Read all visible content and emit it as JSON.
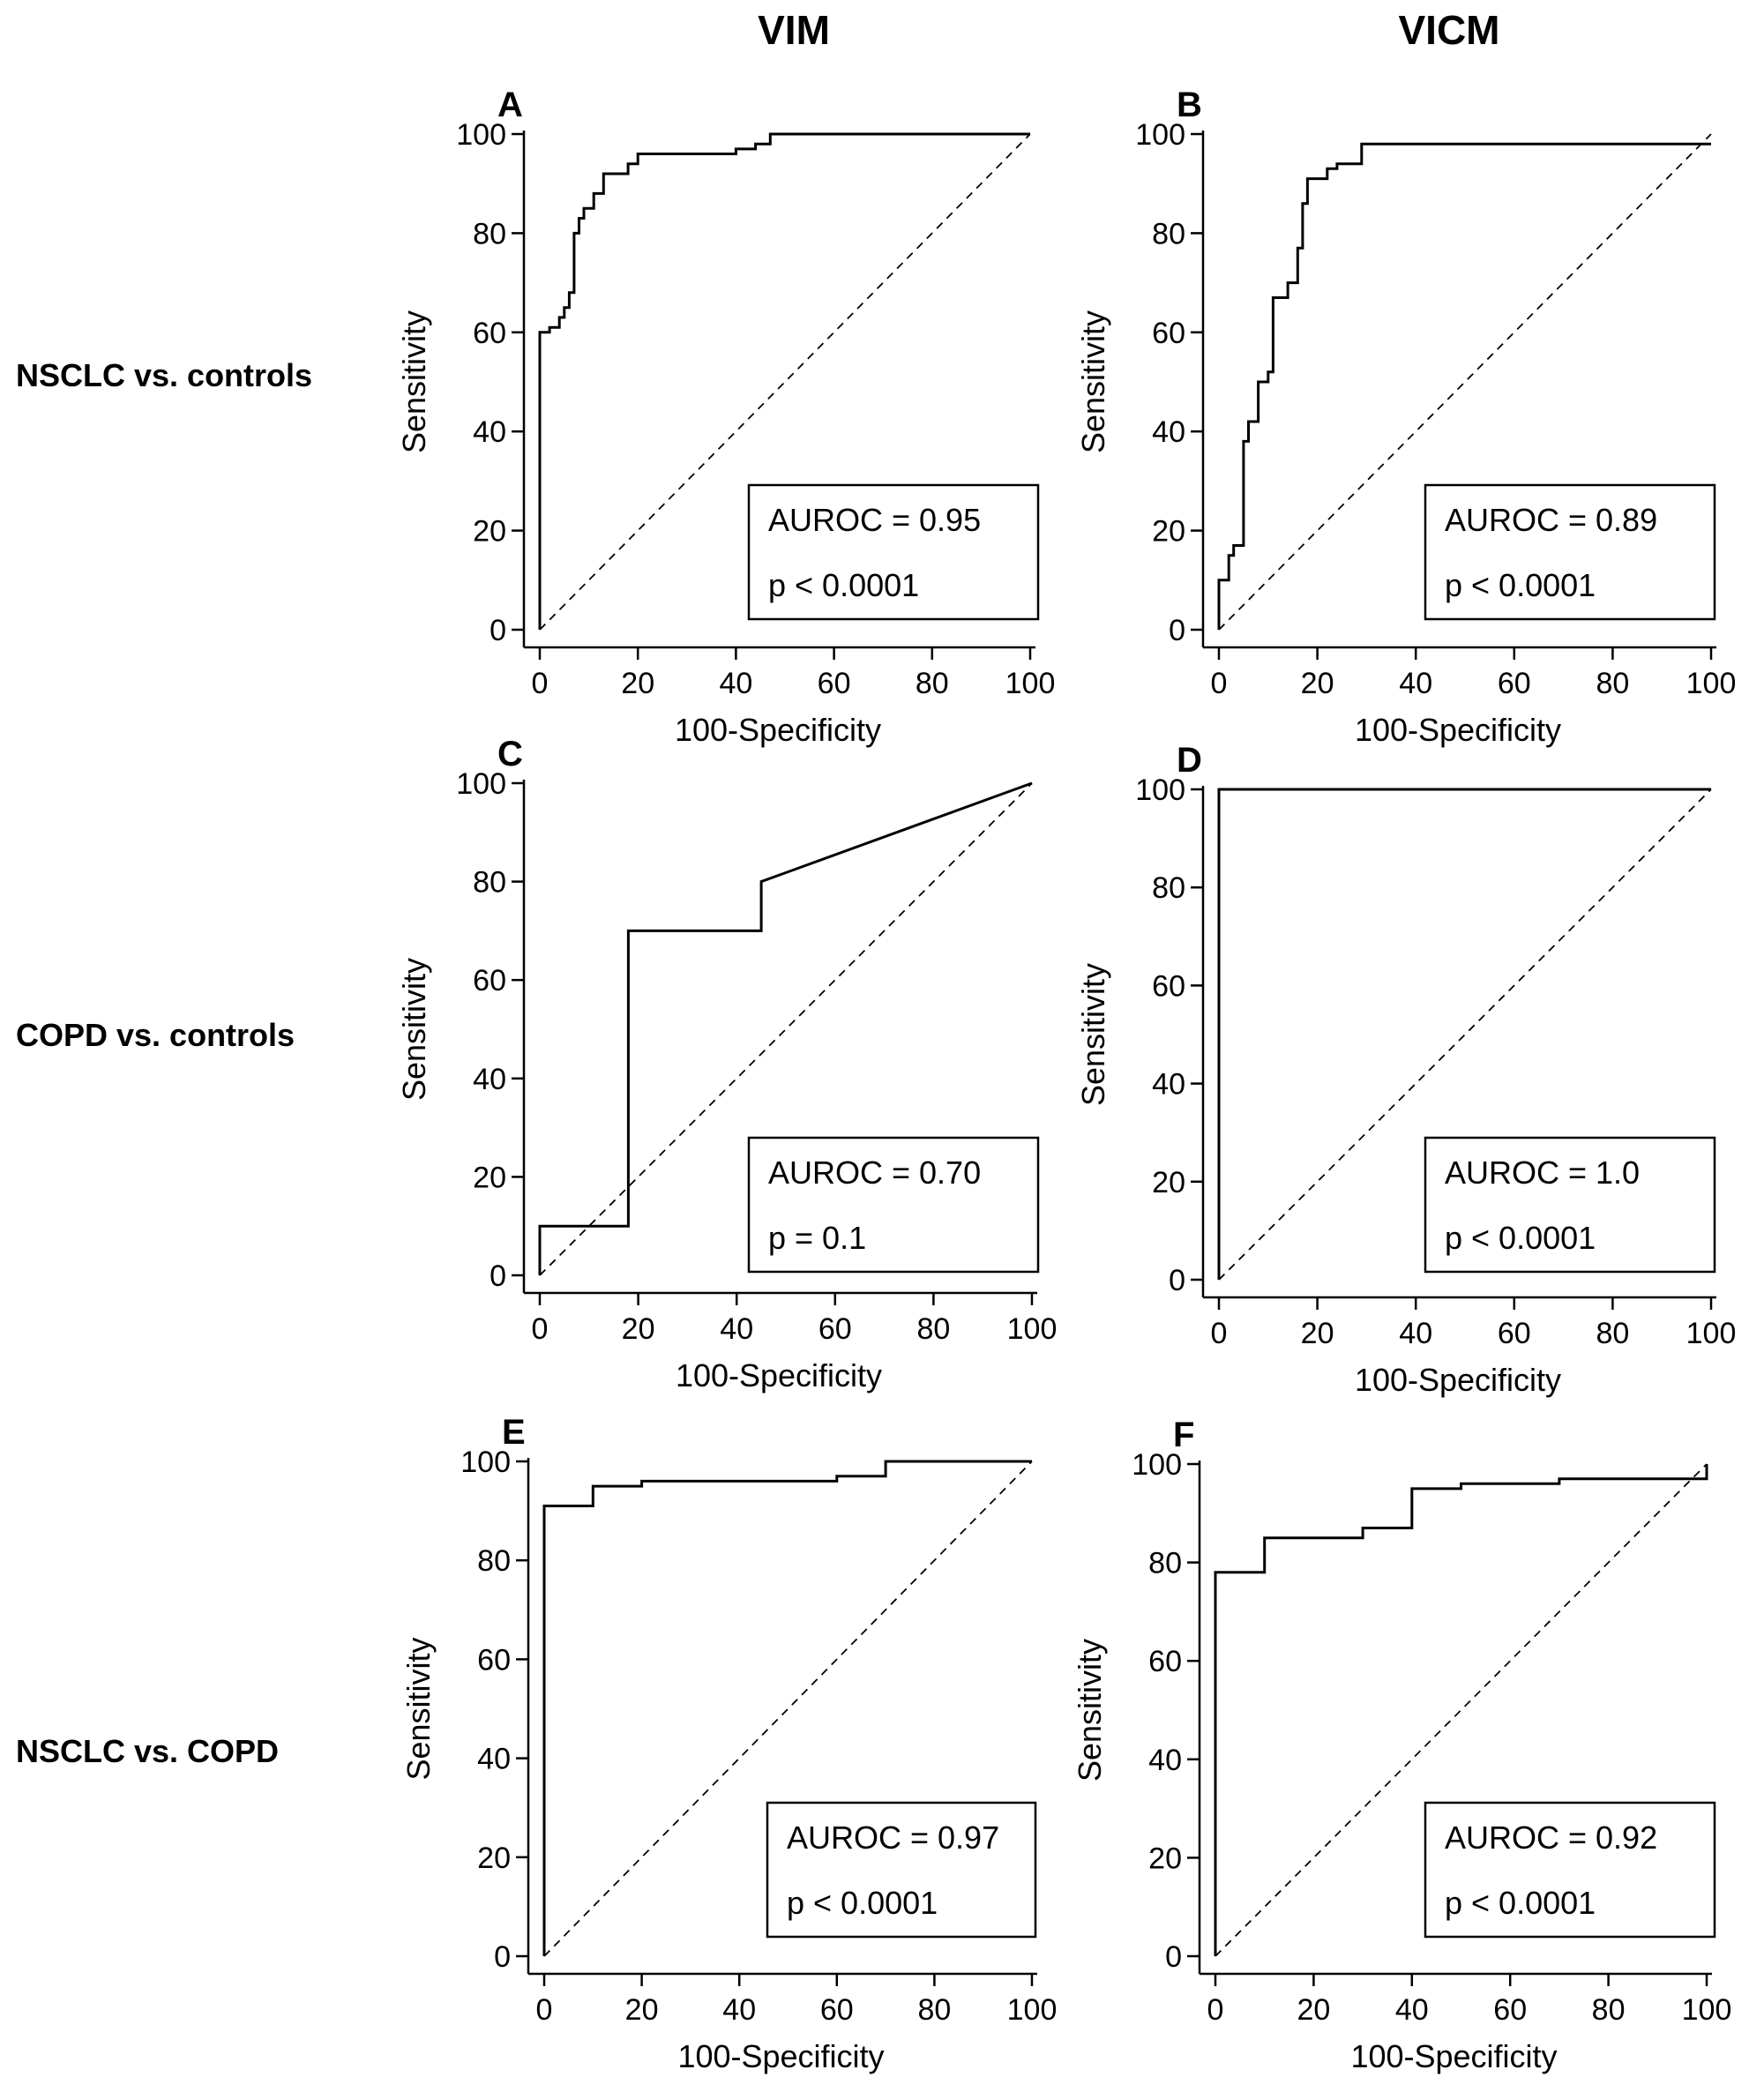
{
  "columns": [
    "VIM",
    "VICM"
  ],
  "rows": [
    "NSCLC vs. controls",
    "COPD vs. controls",
    "NSCLC vs. COPD"
  ],
  "chart_data": [
    {
      "panel": "A",
      "type": "line",
      "xlabel": "100-Specificity",
      "ylabel": "Sensitivity",
      "xlim": [
        0,
        100
      ],
      "ylim": [
        0,
        100
      ],
      "xticks": [
        0,
        20,
        40,
        60,
        80,
        100
      ],
      "yticks": [
        0,
        20,
        40,
        60,
        80,
        100
      ],
      "auroc": "AUROC = 0.95",
      "pvalue": "p < 0.0001",
      "reference_line": [
        [
          0,
          0
        ],
        [
          100,
          100
        ]
      ],
      "curve": [
        [
          0,
          0
        ],
        [
          0,
          60
        ],
        [
          2,
          60
        ],
        [
          2,
          61
        ],
        [
          4,
          61
        ],
        [
          4,
          63
        ],
        [
          5,
          63
        ],
        [
          5,
          65
        ],
        [
          6,
          65
        ],
        [
          6,
          68
        ],
        [
          7,
          68
        ],
        [
          7,
          80
        ],
        [
          8,
          80
        ],
        [
          8,
          83
        ],
        [
          9,
          83
        ],
        [
          9,
          85
        ],
        [
          11,
          85
        ],
        [
          11,
          88
        ],
        [
          13,
          88
        ],
        [
          13,
          92
        ],
        [
          18,
          92
        ],
        [
          18,
          94
        ],
        [
          20,
          94
        ],
        [
          20,
          96
        ],
        [
          40,
          96
        ],
        [
          40,
          97
        ],
        [
          44,
          97
        ],
        [
          44,
          98
        ],
        [
          47,
          98
        ],
        [
          47,
          100
        ],
        [
          100,
          100
        ]
      ]
    },
    {
      "panel": "B",
      "type": "line",
      "xlabel": "100-Specificity",
      "ylabel": "Sensitivity",
      "xlim": [
        0,
        100
      ],
      "ylim": [
        0,
        100
      ],
      "xticks": [
        0,
        20,
        40,
        60,
        80,
        100
      ],
      "yticks": [
        0,
        20,
        40,
        60,
        80,
        100
      ],
      "auroc": "AUROC = 0.89",
      "pvalue": "p < 0.0001",
      "reference_line": [
        [
          0,
          0
        ],
        [
          100,
          100
        ]
      ],
      "curve": [
        [
          0,
          0
        ],
        [
          0,
          10
        ],
        [
          2,
          10
        ],
        [
          2,
          15
        ],
        [
          3,
          15
        ],
        [
          3,
          17
        ],
        [
          5,
          17
        ],
        [
          5,
          38
        ],
        [
          6,
          38
        ],
        [
          6,
          42
        ],
        [
          8,
          42
        ],
        [
          8,
          50
        ],
        [
          10,
          50
        ],
        [
          10,
          52
        ],
        [
          11,
          52
        ],
        [
          11,
          67
        ],
        [
          14,
          67
        ],
        [
          14,
          70
        ],
        [
          16,
          70
        ],
        [
          16,
          77
        ],
        [
          17,
          77
        ],
        [
          17,
          86
        ],
        [
          18,
          86
        ],
        [
          18,
          91
        ],
        [
          22,
          91
        ],
        [
          22,
          93
        ],
        [
          24,
          93
        ],
        [
          24,
          94
        ],
        [
          29,
          94
        ],
        [
          29,
          98
        ],
        [
          100,
          98
        ]
      ]
    },
    {
      "panel": "C",
      "type": "line",
      "xlabel": "100-Specificity",
      "ylabel": "Sensitivity",
      "xlim": [
        0,
        100
      ],
      "ylim": [
        0,
        100
      ],
      "xticks": [
        0,
        20,
        40,
        60,
        80,
        100
      ],
      "yticks": [
        0,
        20,
        40,
        60,
        80,
        100
      ],
      "auroc": "AUROC = 0.70",
      "pvalue": "p = 0.1",
      "reference_line": [
        [
          0,
          0
        ],
        [
          100,
          100
        ]
      ],
      "curve": [
        [
          0,
          0
        ],
        [
          0,
          10
        ],
        [
          18,
          10
        ],
        [
          18,
          70
        ],
        [
          45,
          70
        ],
        [
          45,
          80
        ],
        [
          100,
          100
        ]
      ]
    },
    {
      "panel": "D",
      "type": "line",
      "xlabel": "100-Specificity",
      "ylabel": "Sensitivity",
      "xlim": [
        0,
        100
      ],
      "ylim": [
        0,
        100
      ],
      "xticks": [
        0,
        20,
        40,
        60,
        80,
        100
      ],
      "yticks": [
        0,
        20,
        40,
        60,
        80,
        100
      ],
      "auroc": "AUROC = 1.0",
      "pvalue": "p < 0.0001",
      "reference_line": [
        [
          0,
          0
        ],
        [
          100,
          100
        ]
      ],
      "curve": [
        [
          0,
          0
        ],
        [
          0,
          100
        ],
        [
          100,
          100
        ]
      ]
    },
    {
      "panel": "E",
      "type": "line",
      "xlabel": "100-Specificity",
      "ylabel": "Sensitivity",
      "xlim": [
        0,
        100
      ],
      "ylim": [
        0,
        100
      ],
      "xticks": [
        0,
        20,
        40,
        60,
        80,
        100
      ],
      "yticks": [
        0,
        20,
        40,
        60,
        80,
        100
      ],
      "auroc": "AUROC = 0.97",
      "pvalue": "p < 0.0001",
      "reference_line": [
        [
          0,
          0
        ],
        [
          100,
          100
        ]
      ],
      "curve": [
        [
          0,
          0
        ],
        [
          0,
          91
        ],
        [
          10,
          91
        ],
        [
          10,
          95
        ],
        [
          20,
          95
        ],
        [
          20,
          96
        ],
        [
          60,
          96
        ],
        [
          60,
          97
        ],
        [
          70,
          97
        ],
        [
          70,
          100
        ],
        [
          100,
          100
        ]
      ]
    },
    {
      "panel": "F",
      "type": "line",
      "xlabel": "100-Specificity",
      "ylabel": "Sensitivity",
      "xlim": [
        0,
        100
      ],
      "ylim": [
        0,
        100
      ],
      "xticks": [
        0,
        20,
        40,
        60,
        80,
        100
      ],
      "yticks": [
        0,
        20,
        40,
        60,
        80,
        100
      ],
      "auroc": "AUROC = 0.92",
      "pvalue": "p < 0.0001",
      "reference_line": [
        [
          0,
          0
        ],
        [
          100,
          100
        ]
      ],
      "curve": [
        [
          0,
          0
        ],
        [
          0,
          78
        ],
        [
          10,
          78
        ],
        [
          10,
          85
        ],
        [
          30,
          85
        ],
        [
          30,
          87
        ],
        [
          40,
          87
        ],
        [
          40,
          95
        ],
        [
          50,
          95
        ],
        [
          50,
          96
        ],
        [
          70,
          96
        ],
        [
          70,
          97
        ],
        [
          100,
          97
        ],
        [
          100,
          100
        ]
      ]
    }
  ]
}
